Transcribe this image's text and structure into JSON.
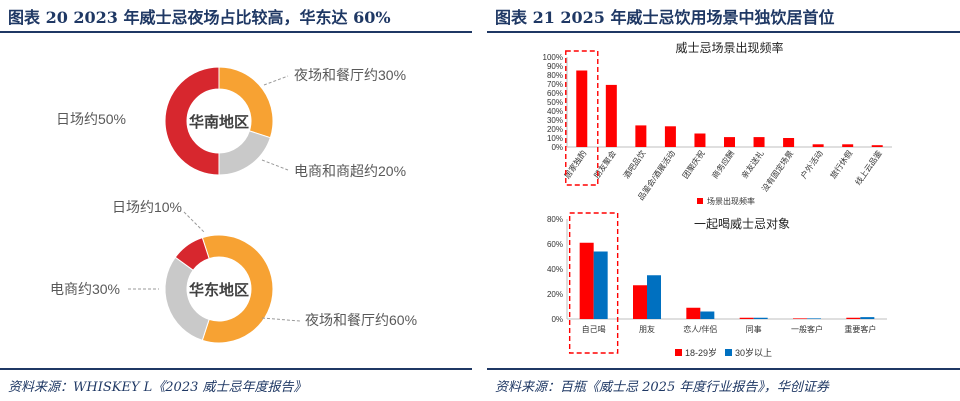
{
  "left": {
    "title": "图表 20   2023 年威士忌夜场占比较高，华东达 60%",
    "source": "资料来源：WHISKEY L《2023 威士忌年度报告》",
    "colors": {
      "nightclub": "#f7a233",
      "ecommerce": "#c9c9c9",
      "daily": "#d7272e"
    }
  },
  "right": {
    "title": "图表 21   2025 年威士忌饮用场景中独饮居首位",
    "source": "资料来源：百瓶《威士忌 2025 年度行业报告》，华创证券"
  },
  "chart_data": [
    {
      "type": "pie",
      "subtype": "donut",
      "center_label": "华南地区",
      "slices": [
        {
          "label": "夜场和餐厅约30%",
          "value": 30,
          "color": "#f7a233"
        },
        {
          "label": "电商和商超约20%",
          "value": 20,
          "color": "#c9c9c9"
        },
        {
          "label": "日场约50%",
          "value": 50,
          "color": "#d7272e"
        }
      ]
    },
    {
      "type": "pie",
      "subtype": "donut",
      "center_label": "华东地区",
      "slices": [
        {
          "label": "夜场和餐厅约60%",
          "value": 60,
          "color": "#f7a233"
        },
        {
          "label": "电商约30%",
          "value": 30,
          "color": "#c9c9c9"
        },
        {
          "label": "日场约10%",
          "value": 10,
          "color": "#d7272e"
        }
      ]
    },
    {
      "type": "bar",
      "title": "威士忌场景出现频率",
      "categories": [
        "居家独酌",
        "朋友聚会",
        "酒吧品饮",
        "品鉴会/酒展活动",
        "团聚庆祝",
        "商务应酬",
        "亲友送礼",
        "没有固定场景",
        "户外活动",
        "旅行休假",
        "线上云品鉴"
      ],
      "series": [
        {
          "name": "场景出现频率",
          "values": [
            85,
            69,
            24,
            23,
            15,
            11,
            11,
            10,
            3,
            3,
            2
          ],
          "color": "#ff0000"
        }
      ],
      "yticks": [
        "0%",
        "10%",
        "20%",
        "30%",
        "40%",
        "50%",
        "60%",
        "70%",
        "80%",
        "90%",
        "100%"
      ],
      "ylim": [
        0,
        100
      ],
      "highlight_category": "居家独酌"
    },
    {
      "type": "bar",
      "title": "一起喝威士忌对象",
      "categories": [
        "自己喝",
        "朋友",
        "恋人/伴侣",
        "同事",
        "一般客户",
        "重要客户"
      ],
      "series": [
        {
          "name": "18-29岁",
          "values": [
            61,
            27,
            9,
            1,
            0.5,
            1
          ],
          "color": "#ff0000"
        },
        {
          "name": "30岁以上",
          "values": [
            54,
            35,
            6,
            1,
            0.5,
            1.5
          ],
          "color": "#0070c0"
        }
      ],
      "yticks": [
        "0%",
        "20%",
        "40%",
        "60%",
        "80%"
      ],
      "ylim": [
        0,
        80
      ],
      "highlight_category": "自己喝"
    }
  ]
}
